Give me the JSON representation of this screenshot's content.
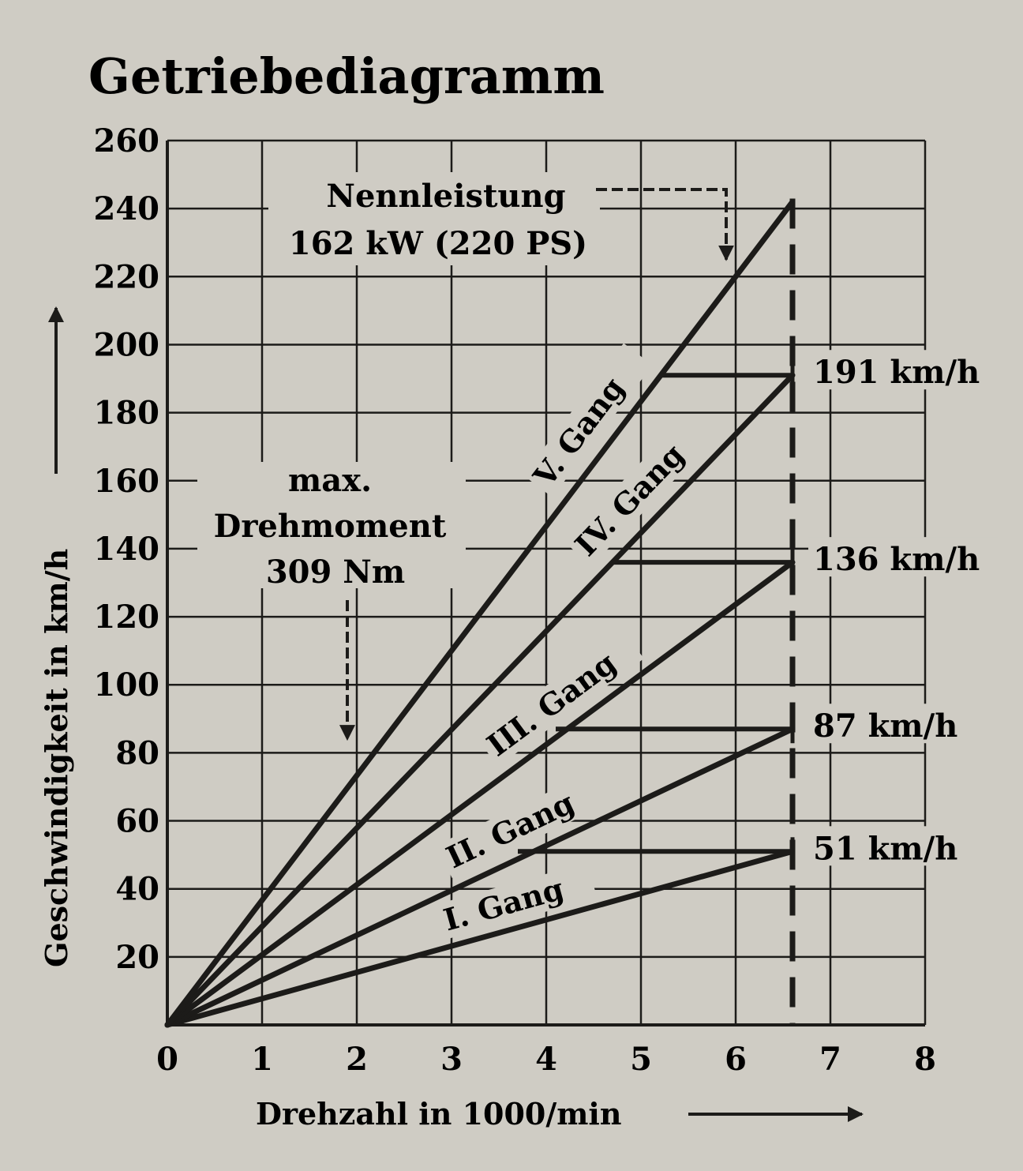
{
  "chart_data": {
    "type": "line",
    "title": "Getriebediagramm",
    "xlabel": "Drehzahl in 1000/min",
    "ylabel": "Geschwindigkeit in km/h",
    "xlim": [
      0,
      8
    ],
    "ylim": [
      0,
      260
    ],
    "x_ticks": [
      0,
      1,
      2,
      3,
      4,
      5,
      6,
      7,
      8
    ],
    "y_ticks": [
      20,
      40,
      60,
      80,
      100,
      120,
      140,
      160,
      180,
      200,
      220,
      240,
      260
    ],
    "grid": true,
    "series": [
      {
        "name": "I. Gang",
        "x": [
          0,
          6.6
        ],
        "y": [
          0,
          51
        ]
      },
      {
        "name": "II. Gang",
        "x": [
          0,
          6.6
        ],
        "y": [
          0,
          87
        ]
      },
      {
        "name": "III. Gang",
        "x": [
          0,
          6.6
        ],
        "y": [
          0,
          136
        ]
      },
      {
        "name": "IV. Gang",
        "x": [
          0,
          6.6
        ],
        "y": [
          0,
          191
        ]
      },
      {
        "name": "V. Gang",
        "x": [
          0,
          6.6
        ],
        "y": [
          0,
          242
        ]
      }
    ],
    "shift_points": [
      {
        "label": "51 km/h",
        "y": 51,
        "x_from": 3.7,
        "x_to": 6.6
      },
      {
        "label": "87 km/h",
        "y": 87,
        "x_from": 4.1,
        "x_to": 6.6
      },
      {
        "label": "136 km/h",
        "y": 136,
        "x_from": 4.7,
        "x_to": 6.6
      },
      {
        "label": "191 km/h",
        "y": 191,
        "x_from": 5.2,
        "x_to": 6.6
      }
    ],
    "rated_speed_line": {
      "x": 6.6
    },
    "annotations": {
      "nennleistung": {
        "lines": [
          "Nennleistung",
          "162 kW (220 PS)"
        ],
        "points_to": {
          "x": 5.9,
          "y": 225
        }
      },
      "drehmoment": {
        "lines": [
          "max.",
          "Drehmoment",
          "309 Nm"
        ],
        "points_to": {
          "x": 1.9,
          "y": 84
        }
      }
    }
  }
}
